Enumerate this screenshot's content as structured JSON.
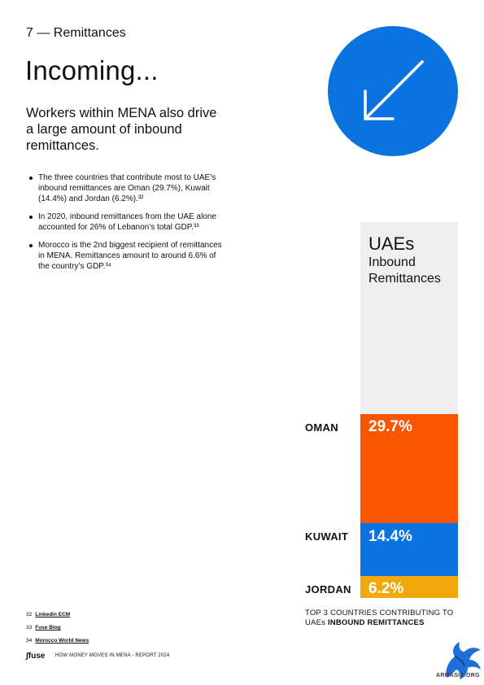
{
  "header": {
    "section": "7 — Remittances",
    "title": "Incoming...",
    "intro": "Workers within MENA also drive a large amount of inbound remittances."
  },
  "bullets": [
    "The three countries that contribute most to UAE’s inbound remittances are Oman (29.7%), Kuwait (14.4%) and Jordan (6.2%).³²",
    " In 2020, inbound remittances from the UAE alone accounted for 26% of Lebanon’s total GDP.³³",
    " Morocco is the 2nd biggest recipient of remittances in MENA. Remittances amount to around 6.6% of the country’s GDP.³⁴"
  ],
  "icon": {
    "name": "arrow-down-left-icon",
    "color": "#0b73e0"
  },
  "stack": {
    "title": "UAEs",
    "subtitle": "Inbound Remittances",
    "segments": [
      {
        "country": "OMAN",
        "value": 29.7,
        "label": "29.7%",
        "color": "#fa5501"
      },
      {
        "country": "KUWAIT",
        "value": 14.4,
        "label": "14.4%",
        "color": "#0b73e0"
      },
      {
        "country": "JORDAN",
        "value": 6.2,
        "label": "6.2%",
        "color": "#f0a80a"
      }
    ],
    "caption_plain": "TOP 3 COUNTRIES CONTRIBUTING TO UAEs ",
    "caption_bold": "INBOUND REMITTANCES"
  },
  "footnotes": [
    {
      "num": "32",
      "text": "Linkedin ECM"
    },
    {
      "num": "33",
      "text": "Fuse Blog"
    },
    {
      "num": "34",
      "text": "Morocco World News"
    }
  ],
  "footer": {
    "logo": "fuse",
    "text": "HOW MONEY MOVES IN MENA - REPORT 2024"
  },
  "watermark": {
    "text": "ARMASIA.ORG"
  }
}
